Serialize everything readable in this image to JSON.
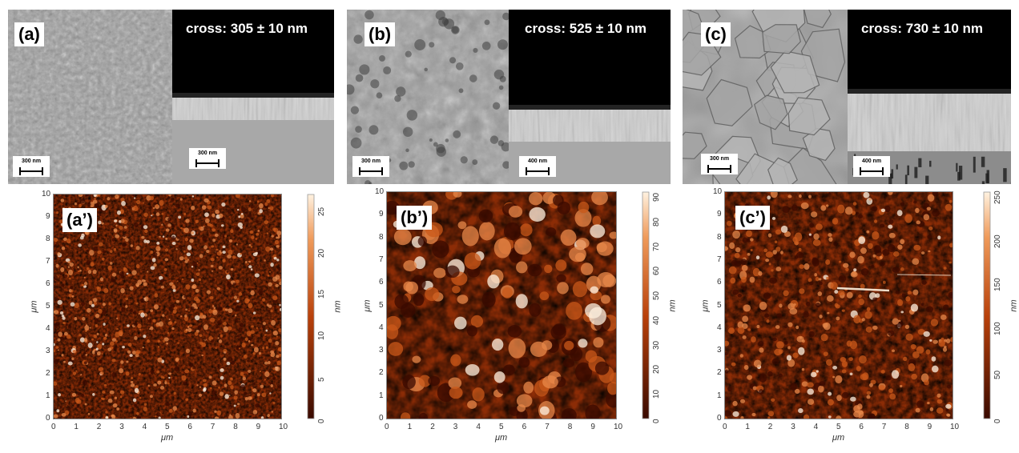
{
  "panels": [
    {
      "sem_label": "(a)",
      "cross_text": "cross: 305 ± 10 nm",
      "scale_left": "300 nm",
      "scale_right": "300 nm",
      "afm_label": "(a’)",
      "afm_colorbar_ticks": [
        "0",
        "5",
        "10",
        "15",
        "20",
        "25"
      ],
      "afm_colorbar_max": 27,
      "afm_colorbar_unit": "nm",
      "sem_style": "fine-grain",
      "afm_style": "fine"
    },
    {
      "sem_label": "(b)",
      "cross_text": "cross: 525 ± 10 nm",
      "scale_left": "300 nm",
      "scale_right": "400 nm",
      "afm_label": "(b’)",
      "afm_colorbar_ticks": [
        "0",
        "10",
        "20",
        "30",
        "40",
        "50",
        "60",
        "70",
        "80",
        "90"
      ],
      "afm_colorbar_max": 92,
      "afm_colorbar_unit": "nm",
      "sem_style": "porous",
      "afm_style": "grains"
    },
    {
      "sem_label": "(c)",
      "cross_text": "cross: 730 ± 10 nm",
      "scale_left": "300 nm",
      "scale_right": "400 nm",
      "afm_label": "(c’)",
      "afm_colorbar_ticks": [
        "0",
        "50",
        "100",
        "150",
        "200",
        "250"
      ],
      "afm_colorbar_max": 258,
      "afm_colorbar_unit": "nm",
      "sem_style": "large-grain",
      "afm_style": "mixed"
    }
  ],
  "afm_axis_ticks": [
    "0",
    "1",
    "2",
    "3",
    "4",
    "5",
    "6",
    "7",
    "8",
    "9",
    "10"
  ],
  "afm_axis_label": "μm",
  "colors": {
    "afm_dark": "#3a0a00",
    "afm_mid": "#b8400a",
    "afm_light": "#fff2e0",
    "sem_gray": "#9a9a9a"
  }
}
